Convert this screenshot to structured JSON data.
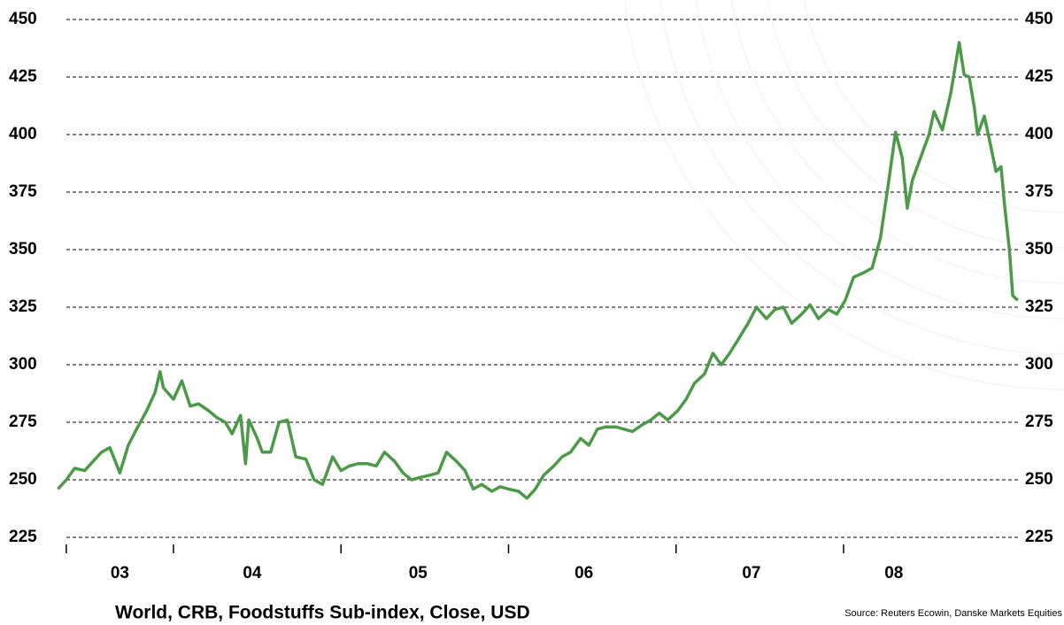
{
  "chart_data": {
    "type": "line",
    "title": "World, CRB, Foodstuffs Sub-index, Close, USD",
    "source": "Source: Reuters Ecowin, Danske Markets Equities",
    "xlim": [
      2003.3,
      2009.05
    ],
    "ylim": [
      225,
      450
    ],
    "yticks": [
      225,
      250,
      275,
      300,
      325,
      350,
      375,
      400,
      425,
      450
    ],
    "xticks": [
      {
        "value": 2003.68,
        "label": "03"
      },
      {
        "value": 2004.47,
        "label": "04"
      },
      {
        "value": 2005.46,
        "label": "05"
      },
      {
        "value": 2006.45,
        "label": "06"
      },
      {
        "value": 2007.45,
        "label": "07"
      },
      {
        "value": 2008.3,
        "label": "08"
      }
    ],
    "year_marks": [
      2003.36,
      2004,
      2005,
      2006,
      2007,
      2008
    ],
    "grid": true,
    "x": [
      2003.31,
      2003.36,
      2003.41,
      2003.47,
      2003.52,
      2003.57,
      2003.62,
      2003.68,
      2003.73,
      2003.78,
      2003.84,
      2003.89,
      2003.92,
      2003.94,
      2004.0,
      2004.05,
      2004.1,
      2004.15,
      2004.21,
      2004.26,
      2004.31,
      2004.35,
      2004.4,
      2004.43,
      2004.45,
      2004.5,
      2004.53,
      2004.58,
      2004.63,
      2004.68,
      2004.73,
      2004.79,
      2004.84,
      2004.89,
      2004.95,
      2005.0,
      2005.05,
      2005.1,
      2005.16,
      2005.21,
      2005.26,
      2005.32,
      2005.37,
      2005.42,
      2005.47,
      2005.53,
      2005.58,
      2005.63,
      2005.69,
      2005.74,
      2005.79,
      2005.84,
      2005.9,
      2005.95,
      2006.0,
      2006.06,
      2006.11,
      2006.16,
      2006.21,
      2006.27,
      2006.32,
      2006.37,
      2006.43,
      2006.48,
      2006.53,
      2006.58,
      2006.64,
      2006.69,
      2006.74,
      2006.8,
      2006.85,
      2006.9,
      2006.95,
      2007.01,
      2007.06,
      2007.11,
      2007.17,
      2007.22,
      2007.27,
      2007.32,
      2007.38,
      2007.43,
      2007.48,
      2007.54,
      2007.59,
      2007.64,
      2007.69,
      2007.75,
      2007.8,
      2007.85,
      2007.91,
      2007.96,
      2008.01,
      2008.06,
      2008.12,
      2008.17,
      2008.22,
      2008.27,
      2008.31,
      2008.35,
      2008.38,
      2008.41,
      2008.46,
      2008.51,
      2008.54,
      2008.59,
      2008.64,
      2008.69,
      2008.72,
      2008.75,
      2008.78,
      2008.8,
      2008.84,
      2008.87,
      2008.91,
      2008.94,
      2008.96,
      2008.99,
      2009.01,
      2009.04
    ],
    "series": [
      {
        "color": "#4c9a48",
        "values": [
          246,
          250,
          255,
          254,
          258,
          262,
          264,
          253,
          265,
          272,
          280,
          288,
          297,
          290,
          285,
          293,
          282,
          283,
          280,
          277,
          275,
          270,
          278,
          257,
          276,
          268,
          262,
          262,
          275,
          276,
          260,
          259,
          250,
          248,
          260,
          254,
          256,
          257,
          257,
          256,
          262,
          258,
          253,
          250,
          251,
          252,
          253,
          262,
          258,
          254,
          246,
          248,
          245,
          247,
          246,
          245,
          242,
          246,
          252,
          256,
          260,
          262,
          268,
          265,
          272,
          273,
          273,
          272,
          271,
          274,
          276,
          279,
          276,
          280,
          285,
          292,
          296,
          305,
          300,
          305,
          312,
          318,
          325,
          320,
          324,
          325,
          318,
          322,
          326,
          320,
          324,
          322,
          328,
          338,
          340,
          342,
          355,
          380,
          401,
          390,
          368,
          380,
          390,
          400,
          410,
          402,
          418,
          440,
          426,
          425,
          412,
          400,
          408,
          398,
          384,
          386,
          370,
          350,
          330,
          328
        ]
      }
    ]
  }
}
